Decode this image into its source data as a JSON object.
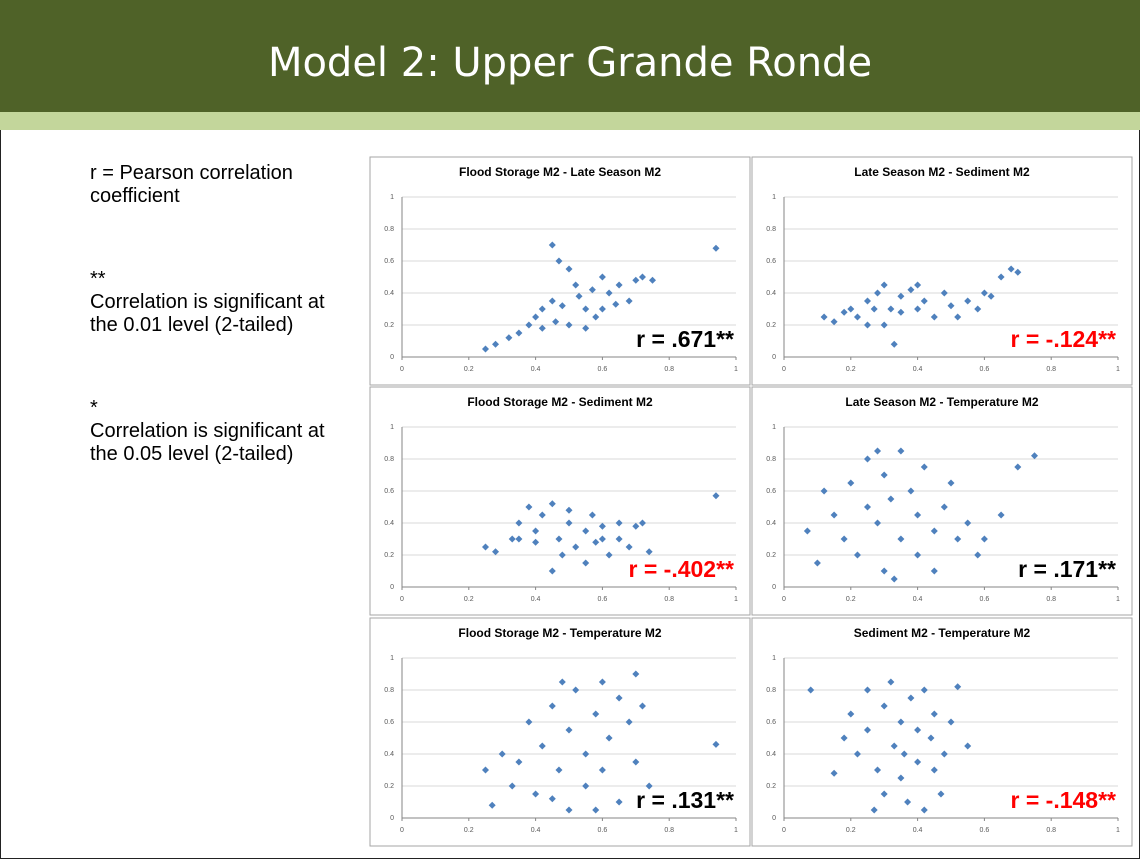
{
  "title": "Model 2:  Upper Grande Ronde",
  "notes": [
    "r = Pearson correlation coefficient",
    "**",
    "Correlation is significant at the 0.01 level (2-tailed)",
    "*",
    "Correlation is significant at the 0.05 level (2-tailed)"
  ],
  "chart_data": [
    {
      "type": "scatter",
      "title": "Flood Storage M2 - Late Season M2",
      "color": "#4f81bd",
      "x": [
        0.25,
        0.28,
        0.32,
        0.35,
        0.38,
        0.4,
        0.42,
        0.45,
        0.47,
        0.45,
        0.5,
        0.52,
        0.55,
        0.58,
        0.6,
        0.62,
        0.65,
        0.68,
        0.7,
        0.72,
        0.75,
        0.5,
        0.55,
        0.6,
        0.48,
        0.53,
        0.57,
        0.64,
        0.94,
        0.42,
        0.46
      ],
      "values": [
        0.05,
        0.08,
        0.12,
        0.15,
        0.2,
        0.25,
        0.3,
        0.35,
        0.6,
        0.7,
        0.55,
        0.45,
        0.3,
        0.25,
        0.5,
        0.4,
        0.45,
        0.35,
        0.48,
        0.5,
        0.48,
        0.2,
        0.18,
        0.3,
        0.32,
        0.38,
        0.42,
        0.33,
        0.68,
        0.18,
        0.22
      ],
      "xlim": [
        0,
        1
      ],
      "ylim": [
        0,
        1
      ],
      "xticks": [
        0,
        0.2,
        0.4,
        0.6,
        0.8,
        1
      ],
      "yticks": [
        0,
        0.2,
        0.4,
        0.6,
        0.8,
        1
      ],
      "grid": true,
      "annotation": "r = .671**",
      "annotation_color": "#000000"
    },
    {
      "type": "scatter",
      "title": "Late Season M2 - Sediment M2",
      "color": "#4f81bd",
      "x": [
        0.12,
        0.15,
        0.18,
        0.2,
        0.22,
        0.25,
        0.28,
        0.3,
        0.32,
        0.35,
        0.3,
        0.33,
        0.38,
        0.4,
        0.42,
        0.45,
        0.48,
        0.5,
        0.52,
        0.55,
        0.58,
        0.6,
        0.62,
        0.65,
        0.68,
        0.7,
        0.27,
        0.35,
        0.25,
        0.4
      ],
      "values": [
        0.25,
        0.22,
        0.28,
        0.3,
        0.25,
        0.35,
        0.4,
        0.45,
        0.3,
        0.38,
        0.2,
        0.08,
        0.42,
        0.3,
        0.35,
        0.25,
        0.4,
        0.32,
        0.25,
        0.35,
        0.3,
        0.4,
        0.38,
        0.5,
        0.55,
        0.53,
        0.3,
        0.28,
        0.2,
        0.45
      ],
      "xlim": [
        0,
        1
      ],
      "ylim": [
        0,
        1
      ],
      "xticks": [
        0,
        0.2,
        0.4,
        0.6,
        0.8,
        1
      ],
      "yticks": [
        0,
        0.2,
        0.4,
        0.6,
        0.8,
        1
      ],
      "grid": true,
      "annotation": "r = -.124**",
      "annotation_color": "#ff0000"
    },
    {
      "type": "scatter",
      "title": "Flood Storage M2 - Sediment M2",
      "color": "#4f81bd",
      "x": [
        0.25,
        0.28,
        0.33,
        0.35,
        0.38,
        0.4,
        0.42,
        0.45,
        0.47,
        0.5,
        0.52,
        0.55,
        0.57,
        0.6,
        0.62,
        0.65,
        0.68,
        0.7,
        0.72,
        0.74,
        0.45,
        0.48,
        0.55,
        0.4,
        0.5,
        0.6,
        0.94,
        0.35,
        0.65,
        0.58
      ],
      "values": [
        0.25,
        0.22,
        0.3,
        0.4,
        0.5,
        0.35,
        0.45,
        0.52,
        0.3,
        0.4,
        0.25,
        0.35,
        0.45,
        0.3,
        0.2,
        0.3,
        0.25,
        0.38,
        0.4,
        0.22,
        0.1,
        0.2,
        0.15,
        0.28,
        0.48,
        0.38,
        0.57,
        0.3,
        0.4,
        0.28
      ],
      "xlim": [
        0,
        1
      ],
      "ylim": [
        0,
        1
      ],
      "xticks": [
        0,
        0.2,
        0.4,
        0.6,
        0.8,
        1
      ],
      "yticks": [
        0,
        0.2,
        0.4,
        0.6,
        0.8,
        1
      ],
      "grid": true,
      "annotation": "r = -.402**",
      "annotation_color": "#ff0000"
    },
    {
      "type": "scatter",
      "title": "Late Season M2 - Temperature M2",
      "color": "#4f81bd",
      "x": [
        0.07,
        0.1,
        0.12,
        0.15,
        0.18,
        0.2,
        0.22,
        0.25,
        0.25,
        0.28,
        0.3,
        0.3,
        0.32,
        0.35,
        0.35,
        0.38,
        0.4,
        0.4,
        0.42,
        0.45,
        0.45,
        0.48,
        0.5,
        0.52,
        0.55,
        0.58,
        0.6,
        0.65,
        0.7,
        0.75,
        0.33,
        0.28
      ],
      "values": [
        0.35,
        0.15,
        0.6,
        0.45,
        0.3,
        0.65,
        0.2,
        0.5,
        0.8,
        0.4,
        0.7,
        0.1,
        0.55,
        0.85,
        0.3,
        0.6,
        0.2,
        0.45,
        0.75,
        0.35,
        0.1,
        0.5,
        0.65,
        0.3,
        0.4,
        0.2,
        0.3,
        0.45,
        0.75,
        0.82,
        0.05,
        0.85
      ],
      "xlim": [
        0,
        1
      ],
      "ylim": [
        0,
        1
      ],
      "xticks": [
        0,
        0.2,
        0.4,
        0.6,
        0.8,
        1
      ],
      "yticks": [
        0,
        0.2,
        0.4,
        0.6,
        0.8,
        1
      ],
      "grid": true,
      "annotation": "r = .171**",
      "annotation_color": "#000000"
    },
    {
      "type": "scatter",
      "title": "Flood Storage M2 - Temperature M2",
      "color": "#4f81bd",
      "x": [
        0.25,
        0.27,
        0.3,
        0.33,
        0.35,
        0.38,
        0.4,
        0.42,
        0.45,
        0.47,
        0.5,
        0.5,
        0.52,
        0.55,
        0.55,
        0.58,
        0.6,
        0.6,
        0.62,
        0.65,
        0.65,
        0.68,
        0.7,
        0.7,
        0.72,
        0.74,
        0.94,
        0.48,
        0.45,
        0.58
      ],
      "values": [
        0.3,
        0.08,
        0.4,
        0.2,
        0.35,
        0.6,
        0.15,
        0.45,
        0.7,
        0.3,
        0.55,
        0.05,
        0.8,
        0.4,
        0.2,
        0.65,
        0.85,
        0.3,
        0.5,
        0.75,
        0.1,
        0.6,
        0.9,
        0.35,
        0.7,
        0.2,
        0.46,
        0.85,
        0.12,
        0.05
      ],
      "xlim": [
        0,
        1
      ],
      "ylim": [
        0,
        1
      ],
      "xticks": [
        0,
        0.2,
        0.4,
        0.6,
        0.8,
        1
      ],
      "yticks": [
        0,
        0.2,
        0.4,
        0.6,
        0.8,
        1
      ],
      "grid": true,
      "annotation": "r = .131**",
      "annotation_color": "#000000"
    },
    {
      "type": "scatter",
      "title": "Sediment M2 - Temperature M2",
      "color": "#4f81bd",
      "x": [
        0.08,
        0.15,
        0.18,
        0.2,
        0.22,
        0.25,
        0.25,
        0.28,
        0.3,
        0.3,
        0.32,
        0.33,
        0.35,
        0.35,
        0.37,
        0.38,
        0.4,
        0.4,
        0.42,
        0.42,
        0.45,
        0.45,
        0.47,
        0.48,
        0.5,
        0.52,
        0.55,
        0.27,
        0.36,
        0.44
      ],
      "values": [
        0.8,
        0.28,
        0.5,
        0.65,
        0.4,
        0.8,
        0.55,
        0.3,
        0.7,
        0.15,
        0.85,
        0.45,
        0.6,
        0.25,
        0.1,
        0.75,
        0.35,
        0.55,
        0.05,
        0.8,
        0.3,
        0.65,
        0.15,
        0.4,
        0.6,
        0.82,
        0.45,
        0.05,
        0.4,
        0.5
      ],
      "xlim": [
        0,
        1
      ],
      "ylim": [
        0,
        1
      ],
      "xticks": [
        0,
        0.2,
        0.4,
        0.6,
        0.8,
        1
      ],
      "yticks": [
        0,
        0.2,
        0.4,
        0.6,
        0.8,
        1
      ],
      "grid": true,
      "annotation": "r = -.148**",
      "annotation_color": "#ff0000"
    }
  ]
}
